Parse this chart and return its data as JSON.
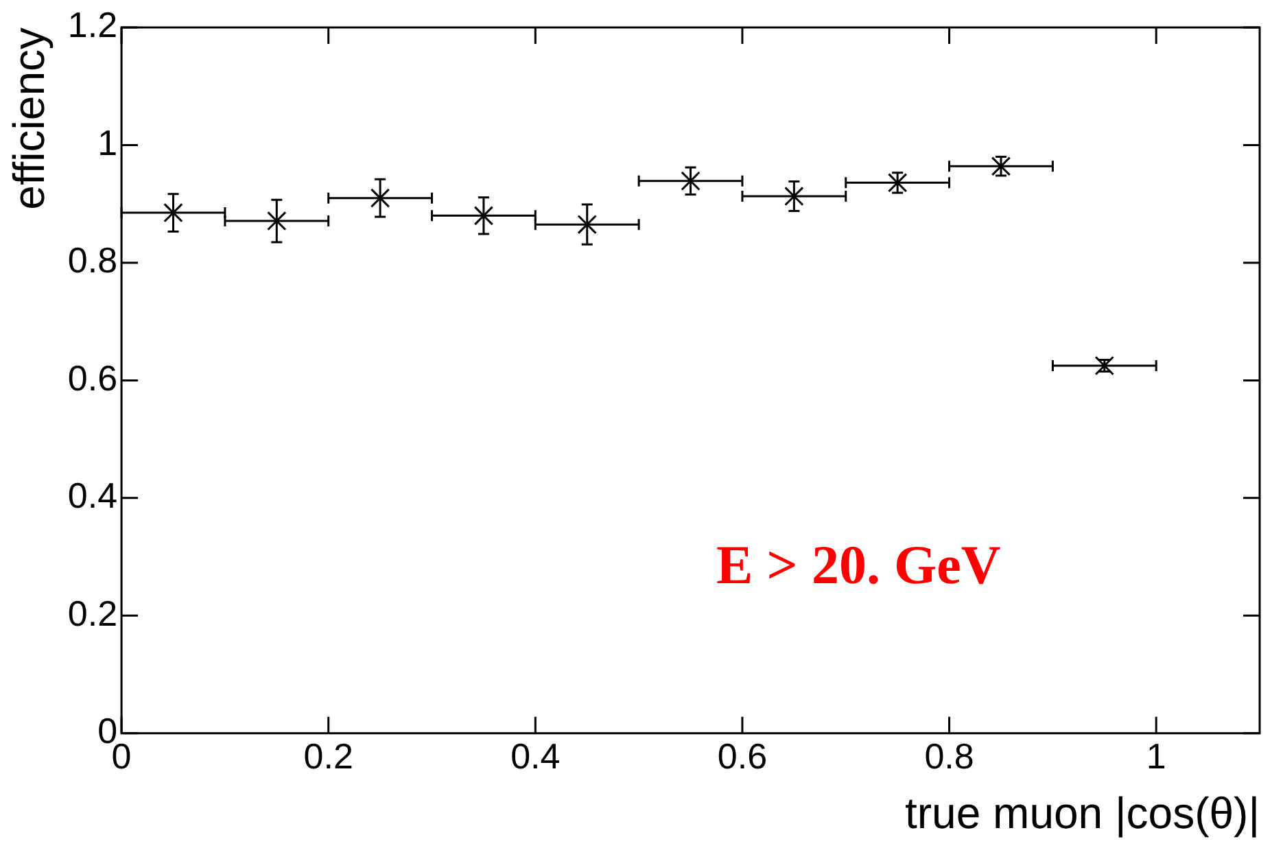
{
  "chart_data": {
    "type": "scatter",
    "xlabel": "true muon |cos(θ)|",
    "ylabel": "efficiency",
    "x": [
      0.05,
      0.15,
      0.25,
      0.35,
      0.45,
      0.55,
      0.65,
      0.75,
      0.85,
      0.95
    ],
    "values": [
      0.885,
      0.871,
      0.91,
      0.88,
      0.865,
      0.939,
      0.913,
      0.936,
      0.964,
      0.625
    ],
    "errors": [
      0.032,
      0.036,
      0.032,
      0.031,
      0.034,
      0.023,
      0.025,
      0.017,
      0.016,
      0.01
    ],
    "xerrors": [
      0.05,
      0.05,
      0.05,
      0.05,
      0.05,
      0.05,
      0.05,
      0.05,
      0.05,
      0.05
    ],
    "color": "#000000",
    "marker": "cross",
    "xlim": [
      0,
      1.1
    ],
    "xticks": [
      0,
      0.2,
      0.4,
      0.6,
      0.8,
      1
    ],
    "ylim": [
      0,
      1.2
    ],
    "yticks": [
      0,
      0.2,
      0.4,
      0.6,
      0.8,
      1,
      1.2
    ],
    "grid": false,
    "legend": false,
    "annotations": [
      "E > 20. GeV"
    ]
  }
}
